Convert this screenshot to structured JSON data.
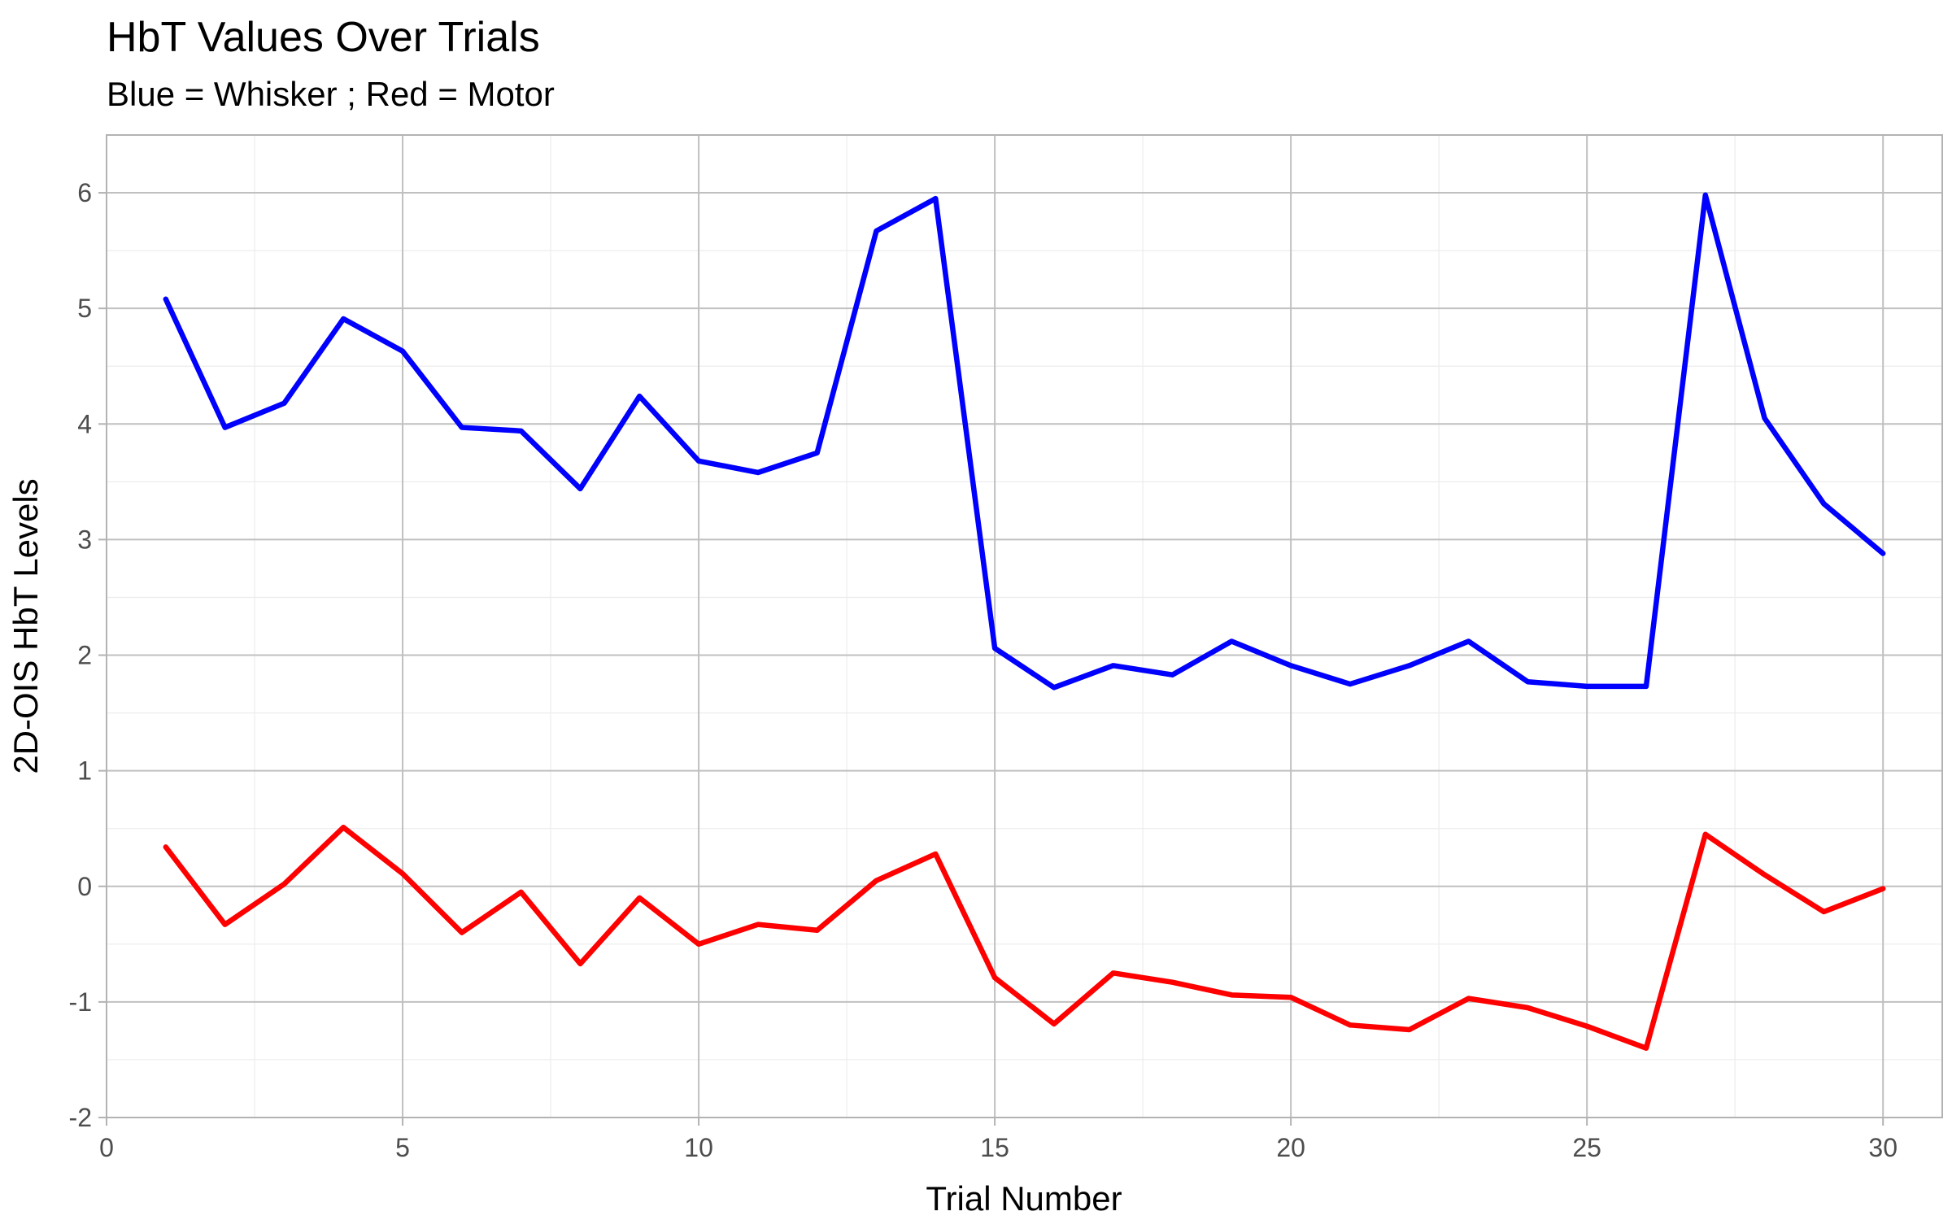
{
  "chart_data": {
    "type": "line",
    "title": "HbT Values Over Trials",
    "subtitle": "Blue = Whisker ; Red = Motor",
    "xlabel": "Trial Number",
    "ylabel": "2D-OIS HbT Levels",
    "xlim": [
      0,
      31
    ],
    "ylim": [
      -2,
      6.5
    ],
    "x_ticks": [
      0,
      5,
      10,
      15,
      20,
      25,
      30
    ],
    "y_ticks": [
      -2,
      -1,
      0,
      1,
      2,
      3,
      4,
      5,
      6
    ],
    "x_minor_ticks": [
      2.5,
      7.5,
      12.5,
      17.5,
      22.5,
      27.5
    ],
    "y_minor_ticks": [
      -1.5,
      -0.5,
      0.5,
      1.5,
      2.5,
      3.5,
      4.5,
      5.5
    ],
    "grid": true,
    "x": [
      1,
      2,
      3,
      4,
      5,
      6,
      7,
      8,
      9,
      10,
      11,
      12,
      13,
      14,
      15,
      16,
      17,
      18,
      19,
      20,
      21,
      22,
      23,
      24,
      25,
      26,
      27,
      28,
      29,
      30
    ],
    "series": [
      {
        "color": "#0000FF",
        "values": [
          5.08,
          3.97,
          4.18,
          4.91,
          4.63,
          3.97,
          3.94,
          3.44,
          4.24,
          3.68,
          3.58,
          3.75,
          5.67,
          5.95,
          2.06,
          1.72,
          1.91,
          1.83,
          2.12,
          1.91,
          1.75,
          1.91,
          2.12,
          1.77,
          1.73,
          1.73,
          5.98,
          4.05,
          3.31,
          2.88
        ]
      },
      {
        "color": "#FF0000",
        "values": [
          0.34,
          -0.33,
          0.02,
          0.51,
          0.11,
          -0.4,
          -0.05,
          -0.67,
          -0.1,
          -0.5,
          -0.33,
          -0.38,
          0.05,
          0.28,
          -0.79,
          -1.19,
          -0.75,
          -0.83,
          -0.94,
          -0.96,
          -1.2,
          -1.24,
          -0.97,
          -1.05,
          -1.21,
          -1.4,
          0.45,
          0.1,
          -0.22,
          -0.02
        ]
      }
    ]
  }
}
